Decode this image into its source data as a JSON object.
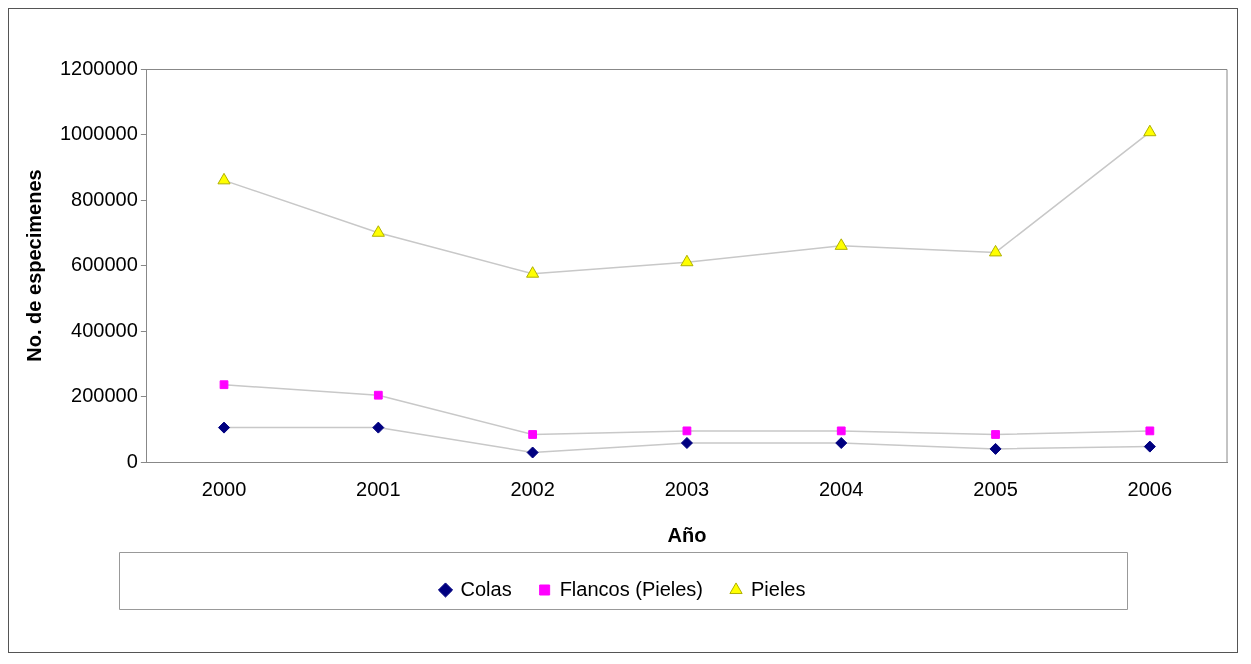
{
  "chart_data": {
    "type": "line",
    "xlabel": "Año",
    "ylabel": "No. de especimenes",
    "categories": [
      "2000",
      "2001",
      "2002",
      "2003",
      "2004",
      "2005",
      "2006"
    ],
    "ylim": [
      0,
      1200000
    ],
    "yticks": [
      0,
      200000,
      400000,
      600000,
      800000,
      1000000,
      1200000
    ],
    "grid": false,
    "legend": "bottom",
    "series": [
      {
        "name": "Colas",
        "color": "#000080",
        "marker": "diamond",
        "values": [
          105000,
          105000,
          29000,
          58000,
          58000,
          40000,
          47000
        ]
      },
      {
        "name": "Flancos (Pieles)",
        "color": "#ff00ff",
        "marker": "square",
        "values": [
          236000,
          204000,
          84000,
          95000,
          95000,
          84000,
          95000
        ]
      },
      {
        "name": "Pieles",
        "color": "#ffff00",
        "marker": "triangle",
        "values": [
          860000,
          700000,
          575000,
          610000,
          660000,
          640000,
          1007000
        ]
      }
    ]
  }
}
